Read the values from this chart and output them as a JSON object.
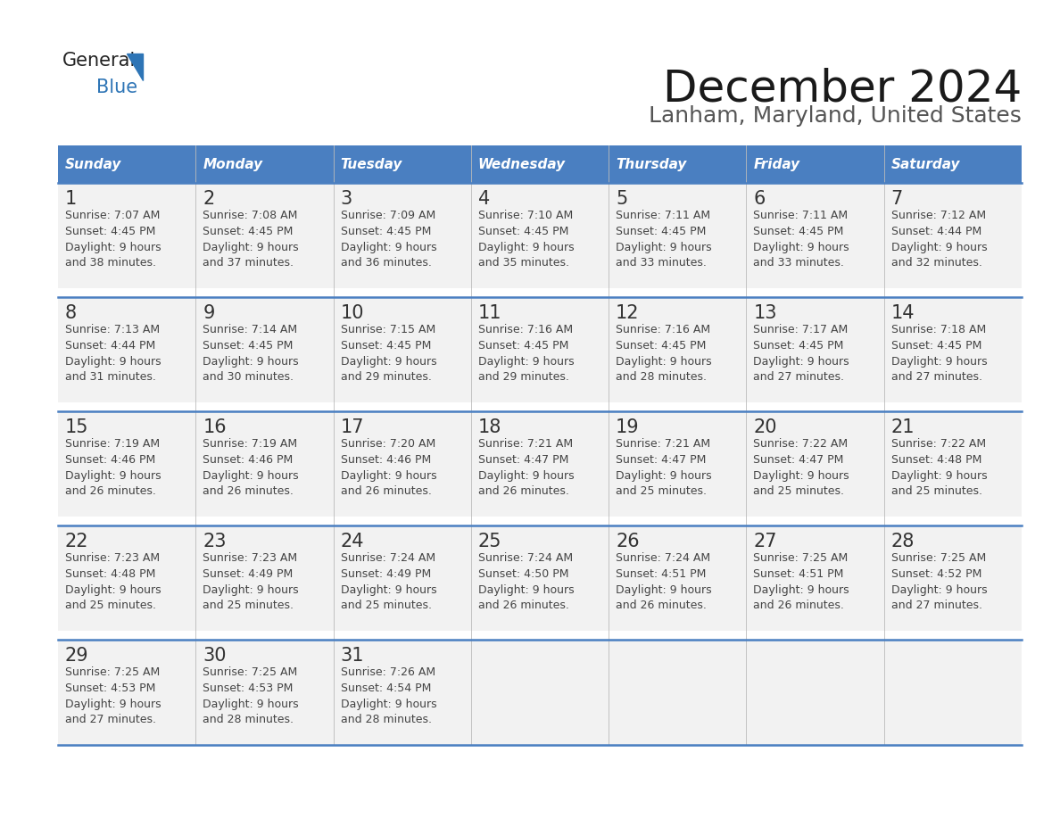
{
  "title": "December 2024",
  "subtitle": "Lanham, Maryland, United States",
  "days_of_week": [
    "Sunday",
    "Monday",
    "Tuesday",
    "Wednesday",
    "Thursday",
    "Friday",
    "Saturday"
  ],
  "header_bg": "#4a7fc1",
  "header_text_color": "#FFFFFF",
  "cell_bg_light": "#F2F2F2",
  "cell_bg_white": "#FFFFFF",
  "row_separator_color": "#4a7fc1",
  "text_color": "#444444",
  "day_num_color": "#333333",
  "logo_general_color": "#222222",
  "logo_blue_color": "#2E75B6",
  "weeks": [
    [
      {
        "day": "1",
        "sunrise": "7:07 AM",
        "sunset": "4:45 PM",
        "daylight_line1": "Daylight: 9 hours",
        "daylight_line2": "and 38 minutes."
      },
      {
        "day": "2",
        "sunrise": "7:08 AM",
        "sunset": "4:45 PM",
        "daylight_line1": "Daylight: 9 hours",
        "daylight_line2": "and 37 minutes."
      },
      {
        "day": "3",
        "sunrise": "7:09 AM",
        "sunset": "4:45 PM",
        "daylight_line1": "Daylight: 9 hours",
        "daylight_line2": "and 36 minutes."
      },
      {
        "day": "4",
        "sunrise": "7:10 AM",
        "sunset": "4:45 PM",
        "daylight_line1": "Daylight: 9 hours",
        "daylight_line2": "and 35 minutes."
      },
      {
        "day": "5",
        "sunrise": "7:11 AM",
        "sunset": "4:45 PM",
        "daylight_line1": "Daylight: 9 hours",
        "daylight_line2": "and 33 minutes."
      },
      {
        "day": "6",
        "sunrise": "7:11 AM",
        "sunset": "4:45 PM",
        "daylight_line1": "Daylight: 9 hours",
        "daylight_line2": "and 33 minutes."
      },
      {
        "day": "7",
        "sunrise": "7:12 AM",
        "sunset": "4:44 PM",
        "daylight_line1": "Daylight: 9 hours",
        "daylight_line2": "and 32 minutes."
      }
    ],
    [
      {
        "day": "8",
        "sunrise": "7:13 AM",
        "sunset": "4:44 PM",
        "daylight_line1": "Daylight: 9 hours",
        "daylight_line2": "and 31 minutes."
      },
      {
        "day": "9",
        "sunrise": "7:14 AM",
        "sunset": "4:45 PM",
        "daylight_line1": "Daylight: 9 hours",
        "daylight_line2": "and 30 minutes."
      },
      {
        "day": "10",
        "sunrise": "7:15 AM",
        "sunset": "4:45 PM",
        "daylight_line1": "Daylight: 9 hours",
        "daylight_line2": "and 29 minutes."
      },
      {
        "day": "11",
        "sunrise": "7:16 AM",
        "sunset": "4:45 PM",
        "daylight_line1": "Daylight: 9 hours",
        "daylight_line2": "and 29 minutes."
      },
      {
        "day": "12",
        "sunrise": "7:16 AM",
        "sunset": "4:45 PM",
        "daylight_line1": "Daylight: 9 hours",
        "daylight_line2": "and 28 minutes."
      },
      {
        "day": "13",
        "sunrise": "7:17 AM",
        "sunset": "4:45 PM",
        "daylight_line1": "Daylight: 9 hours",
        "daylight_line2": "and 27 minutes."
      },
      {
        "day": "14",
        "sunrise": "7:18 AM",
        "sunset": "4:45 PM",
        "daylight_line1": "Daylight: 9 hours",
        "daylight_line2": "and 27 minutes."
      }
    ],
    [
      {
        "day": "15",
        "sunrise": "7:19 AM",
        "sunset": "4:46 PM",
        "daylight_line1": "Daylight: 9 hours",
        "daylight_line2": "and 26 minutes."
      },
      {
        "day": "16",
        "sunrise": "7:19 AM",
        "sunset": "4:46 PM",
        "daylight_line1": "Daylight: 9 hours",
        "daylight_line2": "and 26 minutes."
      },
      {
        "day": "17",
        "sunrise": "7:20 AM",
        "sunset": "4:46 PM",
        "daylight_line1": "Daylight: 9 hours",
        "daylight_line2": "and 26 minutes."
      },
      {
        "day": "18",
        "sunrise": "7:21 AM",
        "sunset": "4:47 PM",
        "daylight_line1": "Daylight: 9 hours",
        "daylight_line2": "and 26 minutes."
      },
      {
        "day": "19",
        "sunrise": "7:21 AM",
        "sunset": "4:47 PM",
        "daylight_line1": "Daylight: 9 hours",
        "daylight_line2": "and 25 minutes."
      },
      {
        "day": "20",
        "sunrise": "7:22 AM",
        "sunset": "4:47 PM",
        "daylight_line1": "Daylight: 9 hours",
        "daylight_line2": "and 25 minutes."
      },
      {
        "day": "21",
        "sunrise": "7:22 AM",
        "sunset": "4:48 PM",
        "daylight_line1": "Daylight: 9 hours",
        "daylight_line2": "and 25 minutes."
      }
    ],
    [
      {
        "day": "22",
        "sunrise": "7:23 AM",
        "sunset": "4:48 PM",
        "daylight_line1": "Daylight: 9 hours",
        "daylight_line2": "and 25 minutes."
      },
      {
        "day": "23",
        "sunrise": "7:23 AM",
        "sunset": "4:49 PM",
        "daylight_line1": "Daylight: 9 hours",
        "daylight_line2": "and 25 minutes."
      },
      {
        "day": "24",
        "sunrise": "7:24 AM",
        "sunset": "4:49 PM",
        "daylight_line1": "Daylight: 9 hours",
        "daylight_line2": "and 25 minutes."
      },
      {
        "day": "25",
        "sunrise": "7:24 AM",
        "sunset": "4:50 PM",
        "daylight_line1": "Daylight: 9 hours",
        "daylight_line2": "and 26 minutes."
      },
      {
        "day": "26",
        "sunrise": "7:24 AM",
        "sunset": "4:51 PM",
        "daylight_line1": "Daylight: 9 hours",
        "daylight_line2": "and 26 minutes."
      },
      {
        "day": "27",
        "sunrise": "7:25 AM",
        "sunset": "4:51 PM",
        "daylight_line1": "Daylight: 9 hours",
        "daylight_line2": "and 26 minutes."
      },
      {
        "day": "28",
        "sunrise": "7:25 AM",
        "sunset": "4:52 PM",
        "daylight_line1": "Daylight: 9 hours",
        "daylight_line2": "and 27 minutes."
      }
    ],
    [
      {
        "day": "29",
        "sunrise": "7:25 AM",
        "sunset": "4:53 PM",
        "daylight_line1": "Daylight: 9 hours",
        "daylight_line2": "and 27 minutes."
      },
      {
        "day": "30",
        "sunrise": "7:25 AM",
        "sunset": "4:53 PM",
        "daylight_line1": "Daylight: 9 hours",
        "daylight_line2": "and 28 minutes."
      },
      {
        "day": "31",
        "sunrise": "7:26 AM",
        "sunset": "4:54 PM",
        "daylight_line1": "Daylight: 9 hours",
        "daylight_line2": "and 28 minutes."
      },
      null,
      null,
      null,
      null
    ]
  ]
}
